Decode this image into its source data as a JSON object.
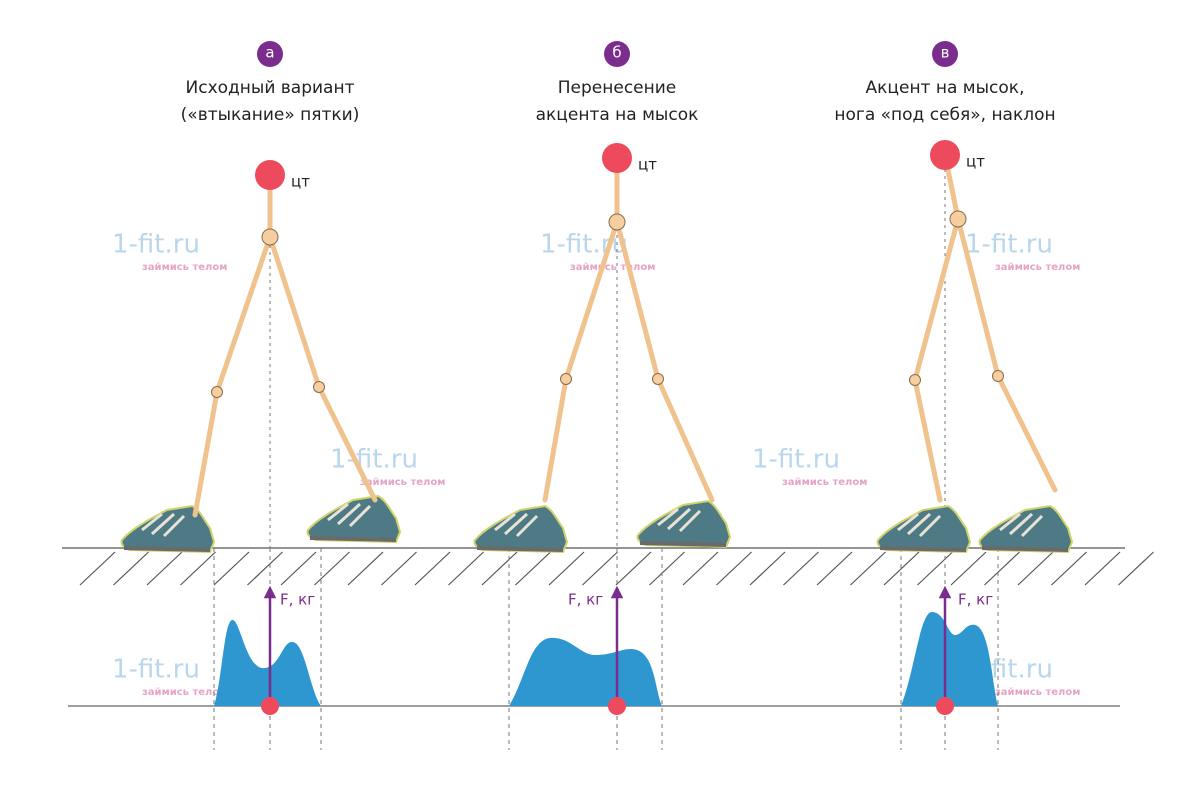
{
  "panels": [
    {
      "letter": "а",
      "title": [
        "Исходный вариант",
        "(«втыкание» пятки)"
      ],
      "cg_label": "цт",
      "force_label": "F, кг"
    },
    {
      "letter": "б",
      "title": [
        "Перенесение",
        "акцента на мысок"
      ],
      "cg_label": "цт",
      "force_label": "F, кг"
    },
    {
      "letter": "в",
      "title": [
        "Акцент на мысок,",
        "нога «под себя», наклон"
      ],
      "cg_label": "цт",
      "force_label": "F, кг"
    }
  ],
  "watermark": {
    "brand": "1-fit.ru",
    "slogan": "займись телом"
  }
}
